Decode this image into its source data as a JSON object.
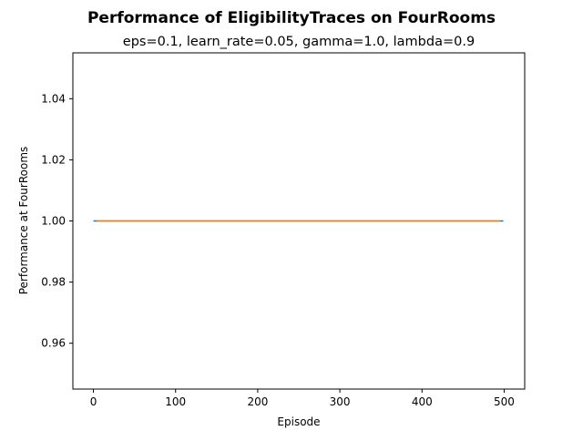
{
  "chart_data": {
    "type": "line",
    "title": "Performance of EligibilityTraces on FourRooms",
    "subtitle": "eps=0.1, learn_rate=0.05, gamma=1.0, lambda=0.9",
    "xlabel": "Episode",
    "ylabel": "Performance at FourRooms",
    "xlim": [
      -25,
      525
    ],
    "ylim": [
      0.945,
      1.055
    ],
    "x_ticks": [
      0,
      100,
      200,
      300,
      400,
      500
    ],
    "x_tick_labels": [
      "0",
      "100",
      "200",
      "300",
      "400",
      "500"
    ],
    "y_ticks": [
      0.96,
      0.98,
      1.0,
      1.02,
      1.04
    ],
    "y_tick_labels": [
      "0.96",
      "0.98",
      "1.00",
      "1.02",
      "1.04"
    ],
    "grid": false,
    "series": [
      {
        "color": "#1f77b4",
        "x": [
          0,
          499
        ],
        "values": [
          1.0,
          1.0
        ]
      },
      {
        "color": "#ff7f0e",
        "x": [
          4,
          495
        ],
        "values": [
          1.0,
          1.0
        ]
      }
    ]
  }
}
